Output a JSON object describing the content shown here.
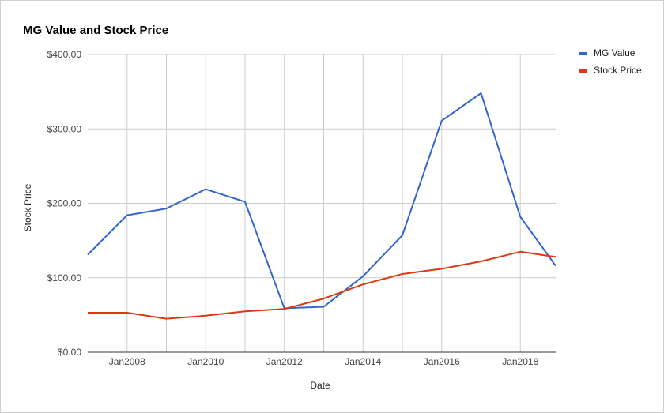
{
  "chart_data": {
    "type": "line",
    "title": "MG Value and Stock Price",
    "xlabel": "Date",
    "ylabel": "Stock Price",
    "ylim": [
      0,
      400
    ],
    "y_ticks": [
      "$0.00",
      "$100.00",
      "$200.00",
      "$300.00",
      "$400.00"
    ],
    "x_ticks": [
      "Jan2008",
      "Jan2010",
      "Jan2012",
      "Jan2014",
      "Jan2016",
      "Jan2018"
    ],
    "x": [
      2007,
      2008,
      2009,
      2010,
      2011,
      2012,
      2013,
      2014,
      2015,
      2016,
      2017,
      2018,
      2018.9
    ],
    "series": [
      {
        "name": "MG Value",
        "color": "#3366cc",
        "values": [
          131,
          184,
          193,
          219,
          202,
          59,
          61,
          102,
          157,
          311,
          348,
          182,
          116
        ]
      },
      {
        "name": "Stock Price",
        "color": "#dc3912",
        "values": [
          53,
          53,
          45,
          49,
          55,
          58,
          72,
          91,
          105,
          112,
          122,
          135,
          128
        ]
      }
    ],
    "grid": true,
    "legend": "right"
  }
}
